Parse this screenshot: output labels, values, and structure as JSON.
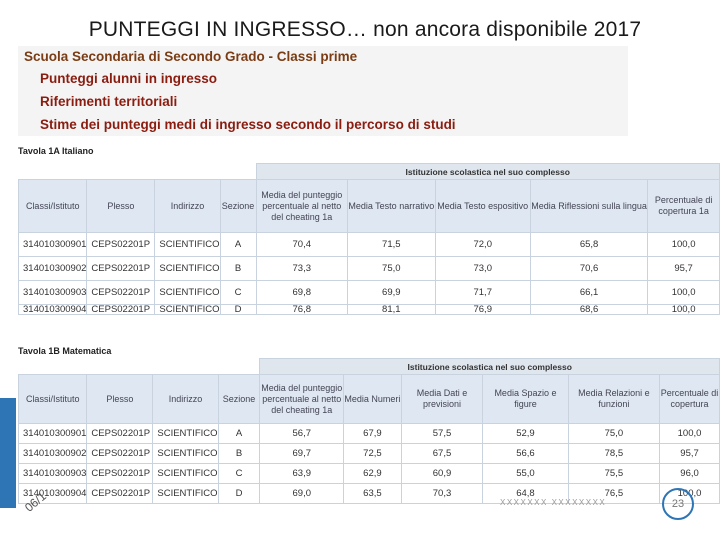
{
  "slide": {
    "title": "PUNTEGGI IN INGRESSO… non ancora disponibile 2017",
    "footer_date": "06/1",
    "footer_text": "XXXXXXX XXXXXXXX",
    "slide_number": "23"
  },
  "menu": {
    "heading": "Scuola Secondaria di Secondo Grado - Classi prime",
    "items": [
      "Punteggi alunni in ingresso",
      "Riferimenti territoriali",
      "Stime dei punteggi medi di ingresso secondo il percorso di studi"
    ]
  },
  "table1": {
    "caption": "Tavola 1A Italiano",
    "group_header": "Istituzione scolastica nel suo complesso",
    "headers": [
      "Classi/Istituto",
      "Plesso",
      "Indirizzo",
      "Sezione",
      "Media del punteggio percentuale al netto del cheating 1a",
      "Media Testo narrativo",
      "Media Testo espositivo",
      "Media Riflessioni sulla lingua",
      "Percentuale di copertura 1a"
    ],
    "rows": [
      [
        "314010300901",
        "CEPS02201P",
        "SCIENTIFICO",
        "A",
        "70,4",
        "71,5",
        "72,0",
        "65,8",
        "100,0"
      ],
      [
        "314010300902",
        "CEPS02201P",
        "SCIENTIFICO",
        "B",
        "73,3",
        "75,0",
        "73,0",
        "70,6",
        "95,7"
      ],
      [
        "314010300903",
        "CEPS02201P",
        "SCIENTIFICO",
        "C",
        "69,8",
        "69,9",
        "71,7",
        "66,1",
        "100,0"
      ],
      [
        "314010300904",
        "CEPS02201P",
        "SCIENTIFICO",
        "D",
        "76,8",
        "81,1",
        "76,9",
        "68,6",
        "100,0"
      ]
    ]
  },
  "table2": {
    "caption": "Tavola 1B Matematica",
    "group_header": "Istituzione scolastica nel suo complesso",
    "headers": [
      "Classi/Istituto",
      "Plesso",
      "Indirizzo",
      "Sezione",
      "Media del punteggio percentuale al netto del cheating 1a",
      "Media Numeri",
      "Media Dati e previsioni",
      "Media Spazio e figure",
      "Media Relazioni e funzioni",
      "Percentuale di copertura"
    ],
    "rows": [
      [
        "314010300901",
        "CEPS02201P",
        "SCIENTIFICO",
        "A",
        "56,7",
        "67,9",
        "57,5",
        "52,9",
        "75,0",
        "100,0"
      ],
      [
        "314010300902",
        "CEPS02201P",
        "SCIENTIFICO",
        "B",
        "69,7",
        "72,5",
        "67,5",
        "56,6",
        "78,5",
        "95,7"
      ],
      [
        "314010300903",
        "CEPS02201P",
        "SCIENTIFICO",
        "C",
        "63,9",
        "62,9",
        "60,9",
        "55,0",
        "75,5",
        "96,0"
      ],
      [
        "314010300904",
        "CEPS02201P",
        "SCIENTIFICO",
        "D",
        "69,0",
        "63,5",
        "70,3",
        "64,8",
        "76,5",
        "100,0"
      ]
    ]
  },
  "colors": {
    "accent": "#2e75b6",
    "menu_text": "#8a1c10",
    "header_fill": "#dfe8f2"
  }
}
